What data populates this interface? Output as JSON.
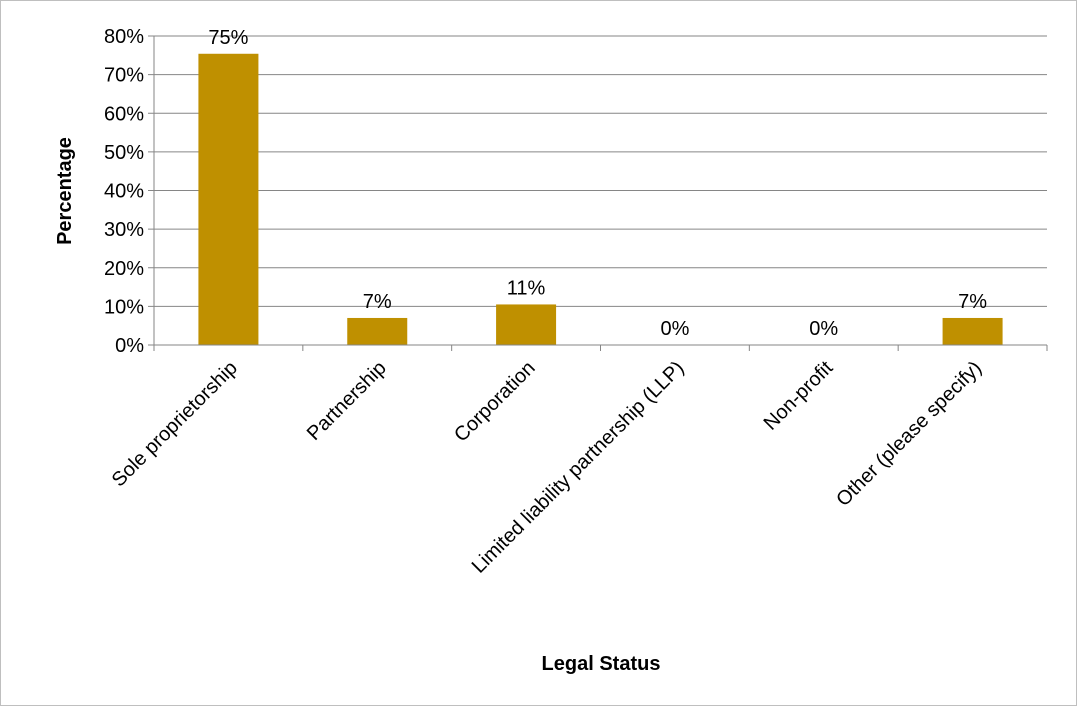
{
  "chart_data": {
    "type": "bar",
    "title": "",
    "xlabel": "Legal Status",
    "ylabel": "Percentage",
    "categories": [
      "Sole proprietorship",
      "Partnership",
      "Corporation",
      "Limited liability partnership (LLP)",
      "Non-profit",
      "Other (please specify)"
    ],
    "values": [
      75.4,
      7.0,
      10.5,
      0,
      0,
      7.0
    ],
    "data_labels": [
      "75%",
      "7%",
      "11%",
      "0%",
      "0%",
      "7%"
    ],
    "ylim": [
      0,
      80
    ],
    "yticks": [
      0,
      10,
      20,
      30,
      40,
      50,
      60,
      70,
      80
    ],
    "ytick_labels": [
      "0%",
      "10%",
      "20%",
      "30%",
      "40%",
      "50%",
      "60%",
      "70%",
      "80%"
    ],
    "bar_color": "#BF9000",
    "grid": true,
    "legend": "none"
  }
}
